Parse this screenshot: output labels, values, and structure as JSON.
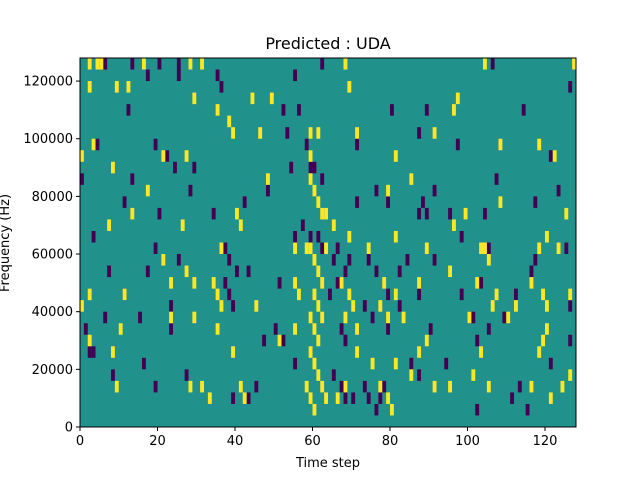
{
  "chart_data": {
    "type": "heatmap",
    "title": "Predicted : UDA",
    "xlabel": "Time step",
    "ylabel": "Frequency (Hz)",
    "xlim": [
      0,
      128
    ],
    "ylim": [
      0,
      128000
    ],
    "xticks": [
      0,
      20,
      40,
      60,
      80,
      100,
      120
    ],
    "yticks": [
      0,
      20000,
      40000,
      60000,
      80000,
      100000,
      120000
    ],
    "ytick_labels": [
      "0",
      "20000",
      "40000",
      "60000",
      "80000",
      "100000",
      "120000"
    ],
    "grid": false,
    "colors": {
      "low": "#440154",
      "mid": "#21918c",
      "high": "#fde725"
    },
    "background_value": 0,
    "cell_width": 1,
    "cell_height": 4000,
    "high_cells": [
      [
        3,
        124000
      ],
      [
        5,
        124000
      ],
      [
        6,
        124000
      ],
      [
        17,
        124000
      ],
      [
        29,
        124000
      ],
      [
        32,
        124000
      ],
      [
        69,
        124000
      ],
      [
        105,
        124000
      ],
      [
        128,
        124000
      ],
      [
        3,
        116000
      ],
      [
        10,
        116000
      ],
      [
        13,
        116000
      ],
      [
        70,
        116000
      ],
      [
        98,
        112000
      ],
      [
        30,
        112000
      ],
      [
        45,
        112000
      ],
      [
        50,
        112000
      ],
      [
        36,
        108000
      ],
      [
        97,
        108000
      ],
      [
        39,
        104000
      ],
      [
        40,
        100000
      ],
      [
        60,
        100000
      ],
      [
        62,
        100000
      ],
      [
        72,
        100000
      ],
      [
        92,
        100000
      ],
      [
        47,
        100000
      ],
      [
        1,
        92000
      ],
      [
        4,
        96000
      ],
      [
        9,
        88000
      ],
      [
        22,
        92000
      ],
      [
        28,
        92000
      ],
      [
        60,
        92000
      ],
      [
        82,
        92000
      ],
      [
        109,
        96000
      ],
      [
        119,
        96000
      ],
      [
        123,
        92000
      ],
      [
        49,
        84000
      ],
      [
        60,
        84000
      ],
      [
        61,
        80000
      ],
      [
        62,
        76000
      ],
      [
        63,
        72000
      ],
      [
        66,
        68000
      ],
      [
        80,
        80000
      ],
      [
        86,
        84000
      ],
      [
        8,
        68000
      ],
      [
        14,
        72000
      ],
      [
        18,
        80000
      ],
      [
        27,
        68000
      ],
      [
        41,
        72000
      ],
      [
        42,
        68000
      ],
      [
        64,
        72000
      ],
      [
        97,
        68000
      ],
      [
        100,
        72000
      ],
      [
        109,
        76000
      ],
      [
        126,
        72000
      ],
      [
        37,
        60000
      ],
      [
        56,
        60000
      ],
      [
        59,
        60000
      ],
      [
        60,
        60000
      ],
      [
        61,
        56000
      ],
      [
        62,
        52000
      ],
      [
        63,
        48000
      ],
      [
        64,
        60000
      ],
      [
        70,
        64000
      ],
      [
        75,
        60000
      ],
      [
        82,
        64000
      ],
      [
        90,
        60000
      ],
      [
        104,
        60000
      ],
      [
        105,
        60000
      ],
      [
        106,
        56000
      ],
      [
        119,
        60000
      ],
      [
        121,
        64000
      ],
      [
        124,
        60000
      ],
      [
        22,
        56000
      ],
      [
        28,
        52000
      ],
      [
        30,
        48000
      ],
      [
        35,
        48000
      ],
      [
        36,
        44000
      ],
      [
        37,
        40000
      ],
      [
        56,
        48000
      ],
      [
        57,
        44000
      ],
      [
        61,
        44000
      ],
      [
        62,
        40000
      ],
      [
        68,
        48000
      ],
      [
        70,
        44000
      ],
      [
        71,
        40000
      ],
      [
        79,
        48000
      ],
      [
        82,
        44000
      ],
      [
        88,
        48000
      ],
      [
        96,
        52000
      ],
      [
        103,
        48000
      ],
      [
        108,
        44000
      ],
      [
        117,
        48000
      ],
      [
        120,
        44000
      ],
      [
        121,
        40000
      ],
      [
        1,
        40000
      ],
      [
        3,
        44000
      ],
      [
        12,
        44000
      ],
      [
        24,
        48000
      ],
      [
        30,
        36000
      ],
      [
        46,
        40000
      ],
      [
        60,
        36000
      ],
      [
        61,
        32000
      ],
      [
        62,
        28000
      ],
      [
        63,
        36000
      ],
      [
        69,
        36000
      ],
      [
        72,
        32000
      ],
      [
        78,
        40000
      ],
      [
        80,
        36000
      ],
      [
        84,
        36000
      ],
      [
        101,
        36000
      ],
      [
        107,
        40000
      ],
      [
        111,
        36000
      ],
      [
        113,
        40000
      ],
      [
        121,
        32000
      ],
      [
        127,
        44000
      ],
      [
        3,
        28000
      ],
      [
        9,
        24000
      ],
      [
        11,
        32000
      ],
      [
        24,
        36000
      ],
      [
        36,
        32000
      ],
      [
        40,
        24000
      ],
      [
        52,
        28000
      ],
      [
        56,
        32000
      ],
      [
        60,
        24000
      ],
      [
        61,
        20000
      ],
      [
        62,
        16000
      ],
      [
        63,
        12000
      ],
      [
        64,
        8000
      ],
      [
        60,
        8000
      ],
      [
        61,
        4000
      ],
      [
        72,
        24000
      ],
      [
        82,
        20000
      ],
      [
        88,
        24000
      ],
      [
        90,
        28000
      ],
      [
        104,
        24000
      ],
      [
        119,
        24000
      ],
      [
        120,
        28000
      ],
      [
        10,
        12000
      ],
      [
        29,
        12000
      ],
      [
        32,
        12000
      ],
      [
        34,
        8000
      ],
      [
        42,
        12000
      ],
      [
        43,
        8000
      ],
      [
        59,
        12000
      ],
      [
        67,
        8000
      ],
      [
        69,
        12000
      ],
      [
        76,
        20000
      ],
      [
        78,
        12000
      ],
      [
        80,
        8000
      ],
      [
        81,
        4000
      ],
      [
        86,
        16000
      ],
      [
        92,
        12000
      ],
      [
        96,
        12000
      ],
      [
        102,
        16000
      ],
      [
        106,
        12000
      ],
      [
        117,
        12000
      ],
      [
        122,
        8000
      ],
      [
        125,
        12000
      ],
      [
        127,
        16000
      ]
    ],
    "low_cells": [
      [
        7,
        124000
      ],
      [
        14,
        124000
      ],
      [
        21,
        124000
      ],
      [
        26,
        124000
      ],
      [
        56,
        120000
      ],
      [
        63,
        124000
      ],
      [
        107,
        124000
      ],
      [
        127,
        116000
      ],
      [
        13,
        108000
      ],
      [
        18,
        120000
      ],
      [
        26,
        120000
      ],
      [
        36,
        120000
      ],
      [
        37,
        116000
      ],
      [
        53,
        108000
      ],
      [
        57,
        108000
      ],
      [
        81,
        108000
      ],
      [
        90,
        108000
      ],
      [
        115,
        108000
      ],
      [
        5,
        96000
      ],
      [
        20,
        96000
      ],
      [
        23,
        92000
      ],
      [
        30,
        88000
      ],
      [
        54,
        100000
      ],
      [
        59,
        96000
      ],
      [
        72,
        96000
      ],
      [
        88,
        100000
      ],
      [
        98,
        96000
      ],
      [
        122,
        92000
      ],
      [
        1,
        84000
      ],
      [
        14,
        84000
      ],
      [
        25,
        88000
      ],
      [
        29,
        80000
      ],
      [
        49,
        80000
      ],
      [
        55,
        88000
      ],
      [
        60,
        88000
      ],
      [
        61,
        88000
      ],
      [
        63,
        84000
      ],
      [
        72,
        76000
      ],
      [
        77,
        80000
      ],
      [
        92,
        80000
      ],
      [
        108,
        84000
      ],
      [
        124,
        80000
      ],
      [
        4,
        64000
      ],
      [
        12,
        76000
      ],
      [
        21,
        72000
      ],
      [
        35,
        72000
      ],
      [
        43,
        76000
      ],
      [
        58,
        68000
      ],
      [
        62,
        64000
      ],
      [
        80,
        76000
      ],
      [
        88,
        72000
      ],
      [
        89,
        76000
      ],
      [
        90,
        72000
      ],
      [
        96,
        72000
      ],
      [
        105,
        72000
      ],
      [
        118,
        76000
      ],
      [
        20,
        60000
      ],
      [
        26,
        56000
      ],
      [
        38,
        60000
      ],
      [
        39,
        56000
      ],
      [
        41,
        52000
      ],
      [
        56,
        64000
      ],
      [
        60,
        64000
      ],
      [
        63,
        60000
      ],
      [
        66,
        56000
      ],
      [
        67,
        60000
      ],
      [
        70,
        56000
      ],
      [
        75,
        56000
      ],
      [
        77,
        52000
      ],
      [
        83,
        52000
      ],
      [
        85,
        56000
      ],
      [
        92,
        56000
      ],
      [
        99,
        64000
      ],
      [
        106,
        60000
      ],
      [
        118,
        56000
      ],
      [
        126,
        60000
      ],
      [
        8,
        52000
      ],
      [
        12,
        44000
      ],
      [
        18,
        52000
      ],
      [
        24,
        40000
      ],
      [
        38,
        48000
      ],
      [
        39,
        44000
      ],
      [
        40,
        40000
      ],
      [
        44,
        52000
      ],
      [
        52,
        48000
      ],
      [
        65,
        44000
      ],
      [
        67,
        48000
      ],
      [
        69,
        52000
      ],
      [
        74,
        40000
      ],
      [
        80,
        44000
      ],
      [
        83,
        40000
      ],
      [
        88,
        44000
      ],
      [
        99,
        44000
      ],
      [
        104,
        48000
      ],
      [
        113,
        44000
      ],
      [
        117,
        52000
      ],
      [
        127,
        40000
      ],
      [
        2,
        32000
      ],
      [
        7,
        36000
      ],
      [
        16,
        36000
      ],
      [
        24,
        32000
      ],
      [
        48,
        28000
      ],
      [
        51,
        32000
      ],
      [
        53,
        28000
      ],
      [
        68,
        32000
      ],
      [
        69,
        28000
      ],
      [
        76,
        36000
      ],
      [
        80,
        32000
      ],
      [
        91,
        32000
      ],
      [
        101,
        36000
      ],
      [
        102,
        36000
      ],
      [
        103,
        28000
      ],
      [
        106,
        32000
      ],
      [
        110,
        36000
      ],
      [
        127,
        28000
      ],
      [
        3,
        24000
      ],
      [
        4,
        24000
      ],
      [
        9,
        16000
      ],
      [
        17,
        20000
      ],
      [
        20,
        12000
      ],
      [
        28,
        16000
      ],
      [
        40,
        8000
      ],
      [
        44,
        8000
      ],
      [
        46,
        12000
      ],
      [
        56,
        20000
      ],
      [
        66,
        16000
      ],
      [
        68,
        12000
      ],
      [
        69,
        8000
      ],
      [
        71,
        8000
      ],
      [
        74,
        12000
      ],
      [
        75,
        8000
      ],
      [
        77,
        4000
      ],
      [
        78,
        8000
      ],
      [
        79,
        12000
      ],
      [
        86,
        20000
      ],
      [
        88,
        16000
      ],
      [
        95,
        20000
      ],
      [
        103,
        4000
      ],
      [
        112,
        8000
      ],
      [
        114,
        12000
      ],
      [
        122,
        20000
      ],
      [
        116,
        4000
      ]
    ]
  }
}
